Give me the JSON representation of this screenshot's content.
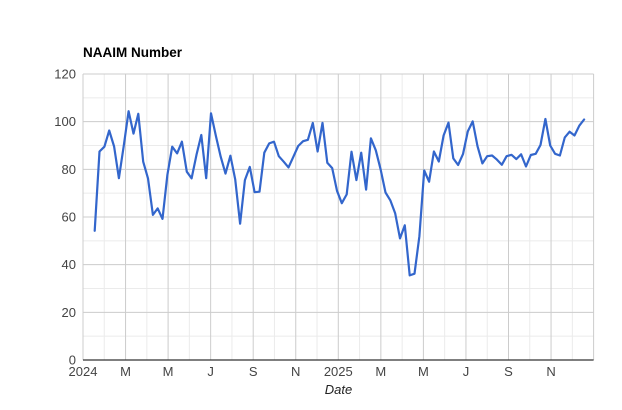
{
  "title": "NAAIM Number",
  "chart_data": {
    "type": "line",
    "title": "NAAIM Number",
    "xlabel": "Date",
    "ylabel": "",
    "legend": "none",
    "grid": "major-and-minor",
    "ylim": [
      0,
      120
    ],
    "y_tick_labels": [
      "0",
      "20",
      "40",
      "60",
      "80",
      "100",
      "120"
    ],
    "x_tick_labels": [
      "2024",
      "M",
      "M",
      "J",
      "S",
      "N",
      "2025",
      "M",
      "M",
      "J",
      "S",
      "N"
    ],
    "colors": {
      "series": "#3366cc",
      "major_grid": "#cccccc",
      "minor_grid": "#ebebeb",
      "baseline": "#333333",
      "tick_text": "#444444"
    },
    "series_name": "NAAIM Number",
    "dates": [
      "2024-01-17",
      "2024-01-24",
      "2024-01-31",
      "2024-02-07",
      "2024-02-14",
      "2024-02-21",
      "2024-02-28",
      "2024-03-06",
      "2024-03-13",
      "2024-03-20",
      "2024-03-27",
      "2024-04-03",
      "2024-04-10",
      "2024-04-17",
      "2024-04-24",
      "2024-05-01",
      "2024-05-08",
      "2024-05-15",
      "2024-05-22",
      "2024-05-29",
      "2024-06-05",
      "2024-06-12",
      "2024-06-19",
      "2024-06-26",
      "2024-07-03",
      "2024-07-10",
      "2024-07-17",
      "2024-07-24",
      "2024-07-31",
      "2024-08-07",
      "2024-08-14",
      "2024-08-21",
      "2024-08-28",
      "2024-09-04",
      "2024-09-11",
      "2024-09-18",
      "2024-09-25",
      "2024-10-02",
      "2024-10-09",
      "2024-10-16",
      "2024-10-23",
      "2024-10-30",
      "2024-11-06",
      "2024-11-13",
      "2024-11-20",
      "2024-11-27",
      "2024-12-04",
      "2024-12-11",
      "2024-12-18",
      "2024-12-25",
      "2025-01-01",
      "2025-01-08",
      "2025-01-15",
      "2025-01-22",
      "2025-01-29",
      "2025-02-05",
      "2025-02-12",
      "2025-02-19",
      "2025-02-26",
      "2025-03-05",
      "2025-03-12",
      "2025-03-19",
      "2025-03-26",
      "2025-04-02",
      "2025-04-09",
      "2025-04-16",
      "2025-04-23",
      "2025-04-30",
      "2025-05-07",
      "2025-05-14",
      "2025-05-21",
      "2025-05-28",
      "2025-06-04",
      "2025-06-11",
      "2025-06-18",
      "2025-06-25",
      "2025-07-02",
      "2025-07-09",
      "2025-07-16",
      "2025-07-23",
      "2025-07-30",
      "2025-08-06",
      "2025-08-13",
      "2025-08-20",
      "2025-08-27",
      "2025-09-03",
      "2025-09-10",
      "2025-09-17",
      "2025-09-24",
      "2025-10-01",
      "2025-10-08",
      "2025-10-15",
      "2025-10-22",
      "2025-10-29",
      "2025-11-05",
      "2025-11-12",
      "2025-11-19",
      "2025-11-26",
      "2025-12-03",
      "2025-12-10",
      "2025-12-17",
      "2025-12-24"
    ],
    "values": [
      54.2,
      87.5,
      89.5,
      96.3,
      89.6,
      76.3,
      90.0,
      104.4,
      95.0,
      103.3,
      83.2,
      76.2,
      60.9,
      63.6,
      59.2,
      77.7,
      89.5,
      86.7,
      91.6,
      79.0,
      76.2,
      86.1,
      94.4,
      76.3,
      103.5,
      94.0,
      85.3,
      78.2,
      85.7,
      75.8,
      57.2,
      75.5,
      81.0,
      70.4,
      70.6,
      87.0,
      90.9,
      91.6,
      85.5,
      83.2,
      80.8,
      85.3,
      89.8,
      91.8,
      92.4,
      99.5,
      87.5,
      99.5,
      82.8,
      80.5,
      71.0,
      65.8,
      69.5,
      87.4,
      75.5,
      87.0,
      71.5,
      93.0,
      88.0,
      80.0,
      70.3,
      67.0,
      61.5,
      51.0,
      56.5,
      35.5,
      36.2,
      52.0,
      79.5,
      74.8,
      87.5,
      83.3,
      94.2,
      99.6,
      84.6,
      81.8,
      86.4,
      95.9,
      100.1,
      89.7,
      82.5,
      85.5,
      85.8,
      84.1,
      81.9,
      85.5,
      86.1,
      84.3,
      86.3,
      81.2,
      86.0,
      86.5,
      90.2,
      101.1,
      90.0,
      86.5,
      85.8,
      93.4,
      95.8,
      94.2,
      98.3,
      100.9
    ]
  }
}
